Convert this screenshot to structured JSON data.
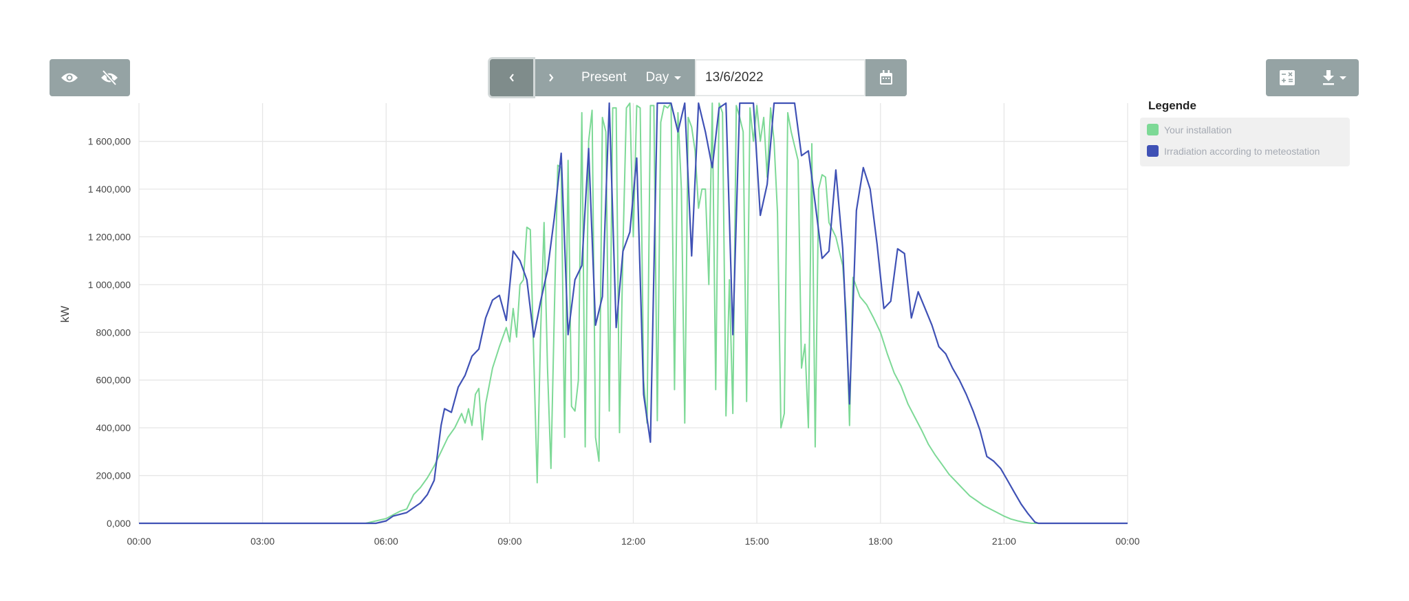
{
  "toolbar": {
    "show_all_icon": "eye-icon",
    "hide_all_icon": "eye-off-icon",
    "prev_icon": "chevron-left-icon",
    "next_icon": "chevron-right-icon",
    "present_label": "Present",
    "period_label": "Day",
    "date_value": "13/6/2022",
    "calendar_icon": "calendar-icon",
    "calculator_icon": "calculator-icon",
    "download_icon": "download-icon"
  },
  "legend": {
    "title": "Legende",
    "items": [
      {
        "label": "Your installation",
        "color": "#7dd996"
      },
      {
        "label": "Irradiation according to meteostation",
        "color": "#3f51b5"
      }
    ]
  },
  "chart_data": {
    "type": "line",
    "ylabel": "kW",
    "xlabel": "",
    "ylim": [
      0,
      1760000
    ],
    "xlim": [
      "00:00",
      "24:00"
    ],
    "grid": true,
    "legend_position": "right",
    "yticks": [
      0,
      200000,
      400000,
      600000,
      800000,
      1000000,
      1200000,
      1400000,
      1600000
    ],
    "ytick_labels": [
      "0,000",
      "200,000",
      "400,000",
      "600,000",
      "800,000",
      "1 000,000",
      "1 200,000",
      "1 400,000",
      "1 600,000"
    ],
    "xtick_labels": [
      "00:00",
      "03:00",
      "06:00",
      "09:00",
      "12:00",
      "15:00",
      "18:00",
      "21:00",
      "00:00"
    ],
    "series": [
      {
        "name": "Your installation",
        "color": "#7dd996",
        "points": [
          [
            "00:00",
            0
          ],
          [
            "05:30",
            0
          ],
          [
            "06:00",
            20000
          ],
          [
            "06:10",
            35000
          ],
          [
            "06:20",
            50000
          ],
          [
            "06:30",
            60000
          ],
          [
            "06:40",
            120000
          ],
          [
            "06:50",
            150000
          ],
          [
            "07:00",
            190000
          ],
          [
            "07:10",
            240000
          ],
          [
            "07:20",
            300000
          ],
          [
            "07:30",
            360000
          ],
          [
            "07:40",
            400000
          ],
          [
            "07:50",
            460000
          ],
          [
            "07:55",
            420000
          ],
          [
            "08:00",
            480000
          ],
          [
            "08:05",
            410000
          ],
          [
            "08:10",
            540000
          ],
          [
            "08:15",
            565000
          ],
          [
            "08:20",
            350000
          ],
          [
            "08:25",
            500000
          ],
          [
            "08:35",
            650000
          ],
          [
            "08:45",
            740000
          ],
          [
            "08:55",
            820000
          ],
          [
            "09:00",
            760000
          ],
          [
            "09:05",
            900000
          ],
          [
            "09:10",
            780000
          ],
          [
            "09:15",
            1000000
          ],
          [
            "09:20",
            1020000
          ],
          [
            "09:25",
            1240000
          ],
          [
            "09:30",
            1230000
          ],
          [
            "09:35",
            700000
          ],
          [
            "09:40",
            170000
          ],
          [
            "09:45",
            800000
          ],
          [
            "09:50",
            1260000
          ],
          [
            "09:55",
            650000
          ],
          [
            "10:00",
            230000
          ],
          [
            "10:05",
            880000
          ],
          [
            "10:10",
            1500000
          ],
          [
            "10:15",
            1490000
          ],
          [
            "10:20",
            360000
          ],
          [
            "10:25",
            1520000
          ],
          [
            "10:30",
            490000
          ],
          [
            "10:35",
            470000
          ],
          [
            "10:40",
            600000
          ],
          [
            "10:45",
            1720000
          ],
          [
            "10:50",
            320000
          ],
          [
            "10:55",
            1600000
          ],
          [
            "11:00",
            1730000
          ],
          [
            "11:05",
            360000
          ],
          [
            "11:10",
            260000
          ],
          [
            "11:15",
            1700000
          ],
          [
            "11:20",
            1640000
          ],
          [
            "11:25",
            470000
          ],
          [
            "11:30",
            1740000
          ],
          [
            "11:35",
            1740000
          ],
          [
            "11:40",
            380000
          ],
          [
            "11:45",
            1160000
          ],
          [
            "11:50",
            1740000
          ],
          [
            "11:55",
            1760000
          ],
          [
            "12:00",
            1200000
          ],
          [
            "12:05",
            1750000
          ],
          [
            "12:10",
            1740000
          ],
          [
            "12:15",
            600000
          ],
          [
            "12:20",
            420000
          ],
          [
            "12:25",
            1750000
          ],
          [
            "12:30",
            1750000
          ],
          [
            "12:35",
            430000
          ],
          [
            "12:40",
            1680000
          ],
          [
            "12:45",
            1750000
          ],
          [
            "12:50",
            1740000
          ],
          [
            "12:55",
            1760000
          ],
          [
            "13:00",
            560000
          ],
          [
            "13:05",
            1720000
          ],
          [
            "13:10",
            1400000
          ],
          [
            "13:15",
            420000
          ],
          [
            "13:20",
            1700000
          ],
          [
            "13:25",
            1660000
          ],
          [
            "13:30",
            1560000
          ],
          [
            "13:35",
            1320000
          ],
          [
            "13:40",
            1400000
          ],
          [
            "13:45",
            1400000
          ],
          [
            "13:50",
            1000000
          ],
          [
            "13:55",
            1760000
          ],
          [
            "14:00",
            560000
          ],
          [
            "14:05",
            1760000
          ],
          [
            "14:10",
            1720000
          ],
          [
            "14:15",
            450000
          ],
          [
            "14:20",
            1020000
          ],
          [
            "14:25",
            460000
          ],
          [
            "14:30",
            1750000
          ],
          [
            "14:35",
            1700000
          ],
          [
            "14:40",
            1640000
          ],
          [
            "14:45",
            510000
          ],
          [
            "14:50",
            1740000
          ],
          [
            "14:55",
            1600000
          ],
          [
            "15:00",
            1750000
          ],
          [
            "15:05",
            1600000
          ],
          [
            "15:10",
            1700000
          ],
          [
            "15:15",
            1450000
          ],
          [
            "15:20",
            1740000
          ],
          [
            "15:25",
            1600000
          ],
          [
            "15:30",
            1300000
          ],
          [
            "15:35",
            400000
          ],
          [
            "15:40",
            460000
          ],
          [
            "15:45",
            1720000
          ],
          [
            "15:50",
            1640000
          ],
          [
            "15:55",
            1580000
          ],
          [
            "16:00",
            1520000
          ],
          [
            "16:05",
            650000
          ],
          [
            "16:10",
            750000
          ],
          [
            "16:15",
            400000
          ],
          [
            "16:20",
            1590000
          ],
          [
            "16:25",
            320000
          ],
          [
            "16:30",
            1400000
          ],
          [
            "16:35",
            1460000
          ],
          [
            "16:40",
            1450000
          ],
          [
            "16:45",
            1260000
          ],
          [
            "16:55",
            1200000
          ],
          [
            "17:05",
            1080000
          ],
          [
            "17:10",
            880000
          ],
          [
            "17:15",
            410000
          ],
          [
            "17:20",
            1030000
          ],
          [
            "17:30",
            950000
          ],
          [
            "17:40",
            915000
          ],
          [
            "17:50",
            860000
          ],
          [
            "18:00",
            800000
          ],
          [
            "18:10",
            710000
          ],
          [
            "18:20",
            630000
          ],
          [
            "18:30",
            575000
          ],
          [
            "18:40",
            500000
          ],
          [
            "18:50",
            445000
          ],
          [
            "19:00",
            390000
          ],
          [
            "19:10",
            330000
          ],
          [
            "19:20",
            285000
          ],
          [
            "19:30",
            245000
          ],
          [
            "19:40",
            205000
          ],
          [
            "19:50",
            175000
          ],
          [
            "20:00",
            145000
          ],
          [
            "20:10",
            115000
          ],
          [
            "20:20",
            95000
          ],
          [
            "20:30",
            75000
          ],
          [
            "20:40",
            60000
          ],
          [
            "20:50",
            45000
          ],
          [
            "21:00",
            30000
          ],
          [
            "21:10",
            18000
          ],
          [
            "21:20",
            10000
          ],
          [
            "21:30",
            4000
          ],
          [
            "21:40",
            0
          ],
          [
            "24:00",
            0
          ]
        ]
      },
      {
        "name": "Irradiation according to meteostation",
        "color": "#3f51b5",
        "points": [
          [
            "00:00",
            0
          ],
          [
            "05:45",
            0
          ],
          [
            "06:00",
            10000
          ],
          [
            "06:10",
            30000
          ],
          [
            "06:30",
            45000
          ],
          [
            "06:40",
            65000
          ],
          [
            "06:50",
            85000
          ],
          [
            "07:00",
            120000
          ],
          [
            "07:10",
            180000
          ],
          [
            "07:20",
            410000
          ],
          [
            "07:25",
            480000
          ],
          [
            "07:35",
            465000
          ],
          [
            "07:45",
            570000
          ],
          [
            "07:55",
            620000
          ],
          [
            "08:05",
            700000
          ],
          [
            "08:15",
            730000
          ],
          [
            "08:25",
            860000
          ],
          [
            "08:35",
            935000
          ],
          [
            "08:45",
            955000
          ],
          [
            "08:55",
            850000
          ],
          [
            "09:05",
            1140000
          ],
          [
            "09:15",
            1100000
          ],
          [
            "09:25",
            1020000
          ],
          [
            "09:35",
            780000
          ],
          [
            "09:45",
            930000
          ],
          [
            "09:55",
            1060000
          ],
          [
            "10:05",
            1280000
          ],
          [
            "10:15",
            1550000
          ],
          [
            "10:25",
            790000
          ],
          [
            "10:35",
            1020000
          ],
          [
            "10:45",
            1080000
          ],
          [
            "10:55",
            1570000
          ],
          [
            "11:05",
            830000
          ],
          [
            "11:15",
            950000
          ],
          [
            "11:25",
            1760000
          ],
          [
            "11:35",
            820000
          ],
          [
            "11:45",
            1140000
          ],
          [
            "11:55",
            1220000
          ],
          [
            "12:05",
            1530000
          ],
          [
            "12:15",
            540000
          ],
          [
            "12:25",
            340000
          ],
          [
            "12:35",
            1760000
          ],
          [
            "12:45",
            1760000
          ],
          [
            "12:55",
            1760000
          ],
          [
            "13:05",
            1640000
          ],
          [
            "13:15",
            1760000
          ],
          [
            "13:25",
            1120000
          ],
          [
            "13:35",
            1760000
          ],
          [
            "13:45",
            1640000
          ],
          [
            "13:55",
            1490000
          ],
          [
            "14:05",
            1740000
          ],
          [
            "14:15",
            1760000
          ],
          [
            "14:25",
            790000
          ],
          [
            "14:35",
            1760000
          ],
          [
            "14:45",
            1760000
          ],
          [
            "14:55",
            1760000
          ],
          [
            "15:05",
            1290000
          ],
          [
            "15:15",
            1420000
          ],
          [
            "15:25",
            1760000
          ],
          [
            "15:35",
            1760000
          ],
          [
            "15:45",
            1760000
          ],
          [
            "15:55",
            1760000
          ],
          [
            "16:05",
            1540000
          ],
          [
            "16:15",
            1560000
          ],
          [
            "16:25",
            1340000
          ],
          [
            "16:35",
            1110000
          ],
          [
            "16:45",
            1140000
          ],
          [
            "16:55",
            1480000
          ],
          [
            "17:05",
            1150000
          ],
          [
            "17:15",
            500000
          ],
          [
            "17:25",
            1310000
          ],
          [
            "17:35",
            1490000
          ],
          [
            "17:45",
            1400000
          ],
          [
            "17:55",
            1170000
          ],
          [
            "18:05",
            900000
          ],
          [
            "18:15",
            930000
          ],
          [
            "18:25",
            1150000
          ],
          [
            "18:35",
            1130000
          ],
          [
            "18:45",
            860000
          ],
          [
            "18:55",
            970000
          ],
          [
            "19:05",
            900000
          ],
          [
            "19:15",
            830000
          ],
          [
            "19:25",
            740000
          ],
          [
            "19:35",
            710000
          ],
          [
            "19:45",
            650000
          ],
          [
            "19:55",
            600000
          ],
          [
            "20:05",
            540000
          ],
          [
            "20:15",
            470000
          ],
          [
            "20:25",
            390000
          ],
          [
            "20:35",
            280000
          ],
          [
            "20:45",
            260000
          ],
          [
            "20:55",
            230000
          ],
          [
            "21:05",
            180000
          ],
          [
            "21:15",
            130000
          ],
          [
            "21:25",
            80000
          ],
          [
            "21:35",
            40000
          ],
          [
            "21:45",
            5000
          ],
          [
            "21:50",
            0
          ],
          [
            "24:00",
            0
          ]
        ]
      }
    ]
  }
}
